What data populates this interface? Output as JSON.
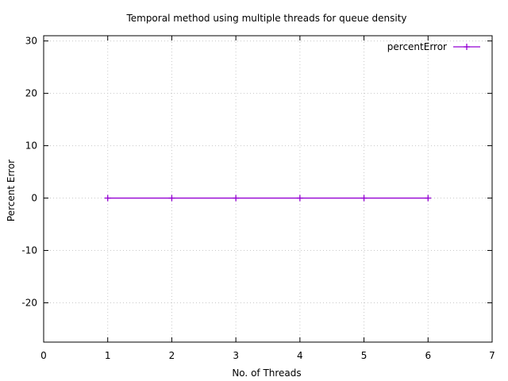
{
  "chart_data": {
    "type": "line",
    "title": "Temporal method using multiple threads for queue density",
    "xlabel": "No. of Threads",
    "ylabel": "Percent Error",
    "xlim": [
      0,
      7
    ],
    "ylim": [
      -27.5,
      31
    ],
    "xticks": [
      0,
      1,
      2,
      3,
      4,
      5,
      6,
      7
    ],
    "yticks": [
      -20,
      -10,
      0,
      10,
      20,
      30
    ],
    "grid": true,
    "legend_position": "top-right",
    "series": [
      {
        "name": "percentError",
        "color": "#9400d3",
        "marker": "plus",
        "x": [
          1,
          2,
          3,
          4,
          5,
          6
        ],
        "y": [
          0,
          0,
          0,
          0,
          0,
          0
        ]
      }
    ]
  }
}
